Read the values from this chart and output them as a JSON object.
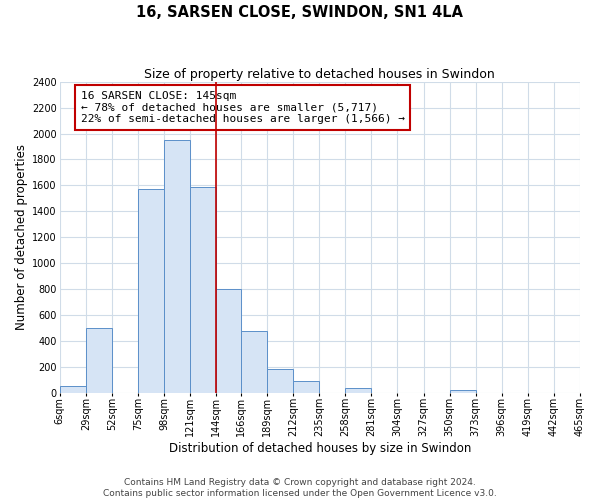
{
  "title": "16, SARSEN CLOSE, SWINDON, SN1 4LA",
  "subtitle": "Size of property relative to detached houses in Swindon",
  "xlabel": "Distribution of detached houses by size in Swindon",
  "ylabel": "Number of detached properties",
  "bar_edges": [
    6,
    29,
    52,
    75,
    98,
    121,
    144,
    166,
    189,
    212,
    235,
    258,
    281,
    304,
    327,
    350,
    373,
    396,
    419,
    442,
    465
  ],
  "bar_heights": [
    55,
    500,
    0,
    1575,
    1950,
    1590,
    800,
    480,
    185,
    90,
    0,
    35,
    0,
    0,
    0,
    20,
    0,
    0,
    0,
    0
  ],
  "bar_color": "#d6e4f5",
  "bar_edge_color": "#5b8fc9",
  "vline_x": 144,
  "vline_color": "#c00000",
  "annotation_line1": "16 SARSEN CLOSE: 145sqm",
  "annotation_line2": "← 78% of detached houses are smaller (5,717)",
  "annotation_line3": "22% of semi-detached houses are larger (1,566) →",
  "annotation_box_edgecolor": "#c00000",
  "annotation_box_facecolor": "white",
  "ylim": [
    0,
    2400
  ],
  "yticks": [
    0,
    200,
    400,
    600,
    800,
    1000,
    1200,
    1400,
    1600,
    1800,
    2000,
    2200,
    2400
  ],
  "tick_labels": [
    "6sqm",
    "29sqm",
    "52sqm",
    "75sqm",
    "98sqm",
    "121sqm",
    "144sqm",
    "166sqm",
    "189sqm",
    "212sqm",
    "235sqm",
    "258sqm",
    "281sqm",
    "304sqm",
    "327sqm",
    "350sqm",
    "373sqm",
    "396sqm",
    "419sqm",
    "442sqm",
    "465sqm"
  ],
  "footer_text": "Contains HM Land Registry data © Crown copyright and database right 2024.\nContains public sector information licensed under the Open Government Licence v3.0.",
  "bg_color": "#ffffff",
  "plot_bg_color": "#ffffff",
  "grid_color": "#d0dce8",
  "title_fontsize": 10.5,
  "subtitle_fontsize": 9,
  "axis_label_fontsize": 8.5,
  "tick_fontsize": 7,
  "annotation_fontsize": 8,
  "footer_fontsize": 6.5
}
